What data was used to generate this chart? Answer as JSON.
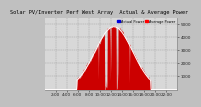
{
  "title": "Solar PV/Inverter Perf West Array  Actual & Average Power",
  "legend_label_actual": "Actual Power",
  "legend_label_avg": "Average Power",
  "legend_color_actual": "#0000dd",
  "legend_color_avg": "#ff0000",
  "bg_color": "#c0c0c0",
  "plot_bg_color": "#d8d8d8",
  "grid_color": "#888888",
  "fill_color": "#cc0000",
  "line_color": "#dd0000",
  "avg_line_color": "#ffffff",
  "n_points": 288,
  "peak": 4800,
  "ylim": [
    0,
    5500
  ],
  "yticks": [
    1000,
    2000,
    3000,
    4000,
    5000
  ],
  "title_color": "#000000",
  "title_fontsize": 3.8,
  "tick_fontsize": 3.0,
  "dpi": 100,
  "seed": 12345
}
